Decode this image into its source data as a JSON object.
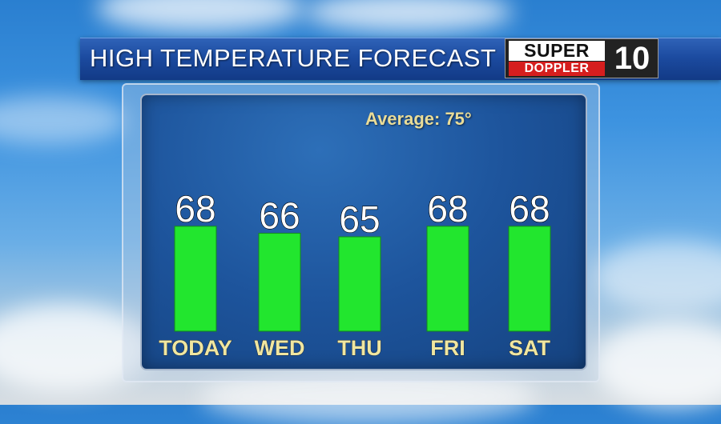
{
  "header": {
    "title": "HIGH TEMPERATURE FORECAST",
    "logo_super": "SUPER",
    "logo_doppler": "DOPPLER",
    "logo_number": "10"
  },
  "annotation": {
    "average_label": "Average: 75°"
  },
  "colors": {
    "bar": "#22e62e",
    "day_label": "#f0e6a0",
    "value_label": "#ffffff",
    "panel": "#1d549c",
    "title_bar": "#1c4ba0"
  },
  "chart_data": {
    "type": "bar",
    "title": "HIGH TEMPERATURE FORECAST",
    "categories": [
      "TODAY",
      "WED",
      "THU",
      "FRI",
      "SAT"
    ],
    "values": [
      68,
      66,
      65,
      68,
      68
    ],
    "annotations": [
      "Average: 75°"
    ],
    "grid": false,
    "legend": "none"
  }
}
